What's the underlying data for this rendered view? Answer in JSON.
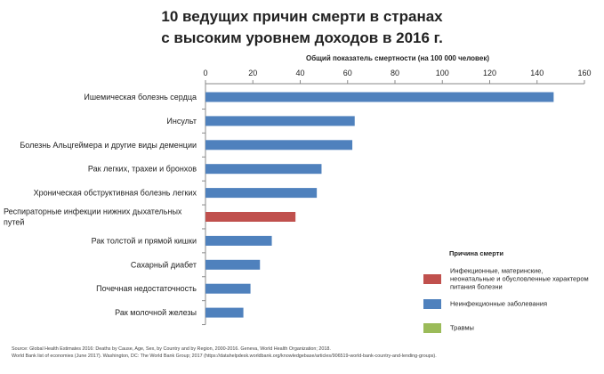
{
  "title_line1": "10 ведущих причин смерти в странах",
  "title_line2": "с высоким уровнем доходов в 2016 г.",
  "chart_data": {
    "type": "bar",
    "orientation": "horizontal",
    "xlabel": "Общий показатель смертности (на 100 000 человек)",
    "xlim": [
      0,
      160
    ],
    "xticks": [
      0,
      20,
      40,
      60,
      80,
      100,
      120,
      140,
      160
    ],
    "grid": false,
    "legend_position": "right",
    "legend_title": "Причина смерти",
    "legend": [
      {
        "label_lines": [
          "Инфекционные, материнские,",
          "неонатальные и обусловленные характером",
          "питания болезни"
        ],
        "color": "#c0504d"
      },
      {
        "label_lines": [
          "Неинфекционные заболевания"
        ],
        "color": "#4f81bd"
      },
      {
        "label_lines": [
          "Травмы"
        ],
        "color": "#9bbb59"
      }
    ],
    "categories": [
      {
        "label_lines": [
          "Ишемическая болезнь сердца"
        ],
        "value": 147,
        "color": "#4f81bd"
      },
      {
        "label_lines": [
          "Инсульт"
        ],
        "value": 63,
        "color": "#4f81bd"
      },
      {
        "label_lines": [
          "Болезнь Альцгеймера и другие виды деменции"
        ],
        "value": 62,
        "color": "#4f81bd"
      },
      {
        "label_lines": [
          "Рак легких, трахеи и бронхов"
        ],
        "value": 49,
        "color": "#4f81bd"
      },
      {
        "label_lines": [
          "Хроническая обструктивная болезнь легких"
        ],
        "value": 47,
        "color": "#4f81bd"
      },
      {
        "label_lines": [
          "Респираторные инфекции нижних дыхательных",
          "путей"
        ],
        "value": 38,
        "color": "#c0504d"
      },
      {
        "label_lines": [
          "Рак толстой и прямой кишки"
        ],
        "value": 28,
        "color": "#4f81bd"
      },
      {
        "label_lines": [
          "Сахарный диабет"
        ],
        "value": 23,
        "color": "#4f81bd"
      },
      {
        "label_lines": [
          "Почечная недостаточность"
        ],
        "value": 19,
        "color": "#4f81bd"
      },
      {
        "label_lines": [
          "Рак молочной железы"
        ],
        "value": 16,
        "color": "#4f81bd"
      }
    ]
  },
  "source_line1": "Source: Global Health Estimates 2016: Deaths by Cause, Age, Sex, by Country and by Region, 2000-2016. Geneva, World Health Organization; 2018.",
  "source_line2": "World Bank list of economies (June 2017). Washington, DC: The World Bank Group; 2017 (https://datahelpdesk.worldbank.org/knowledgebase/articles/906519-world-bank-country-and-lending-groups)."
}
